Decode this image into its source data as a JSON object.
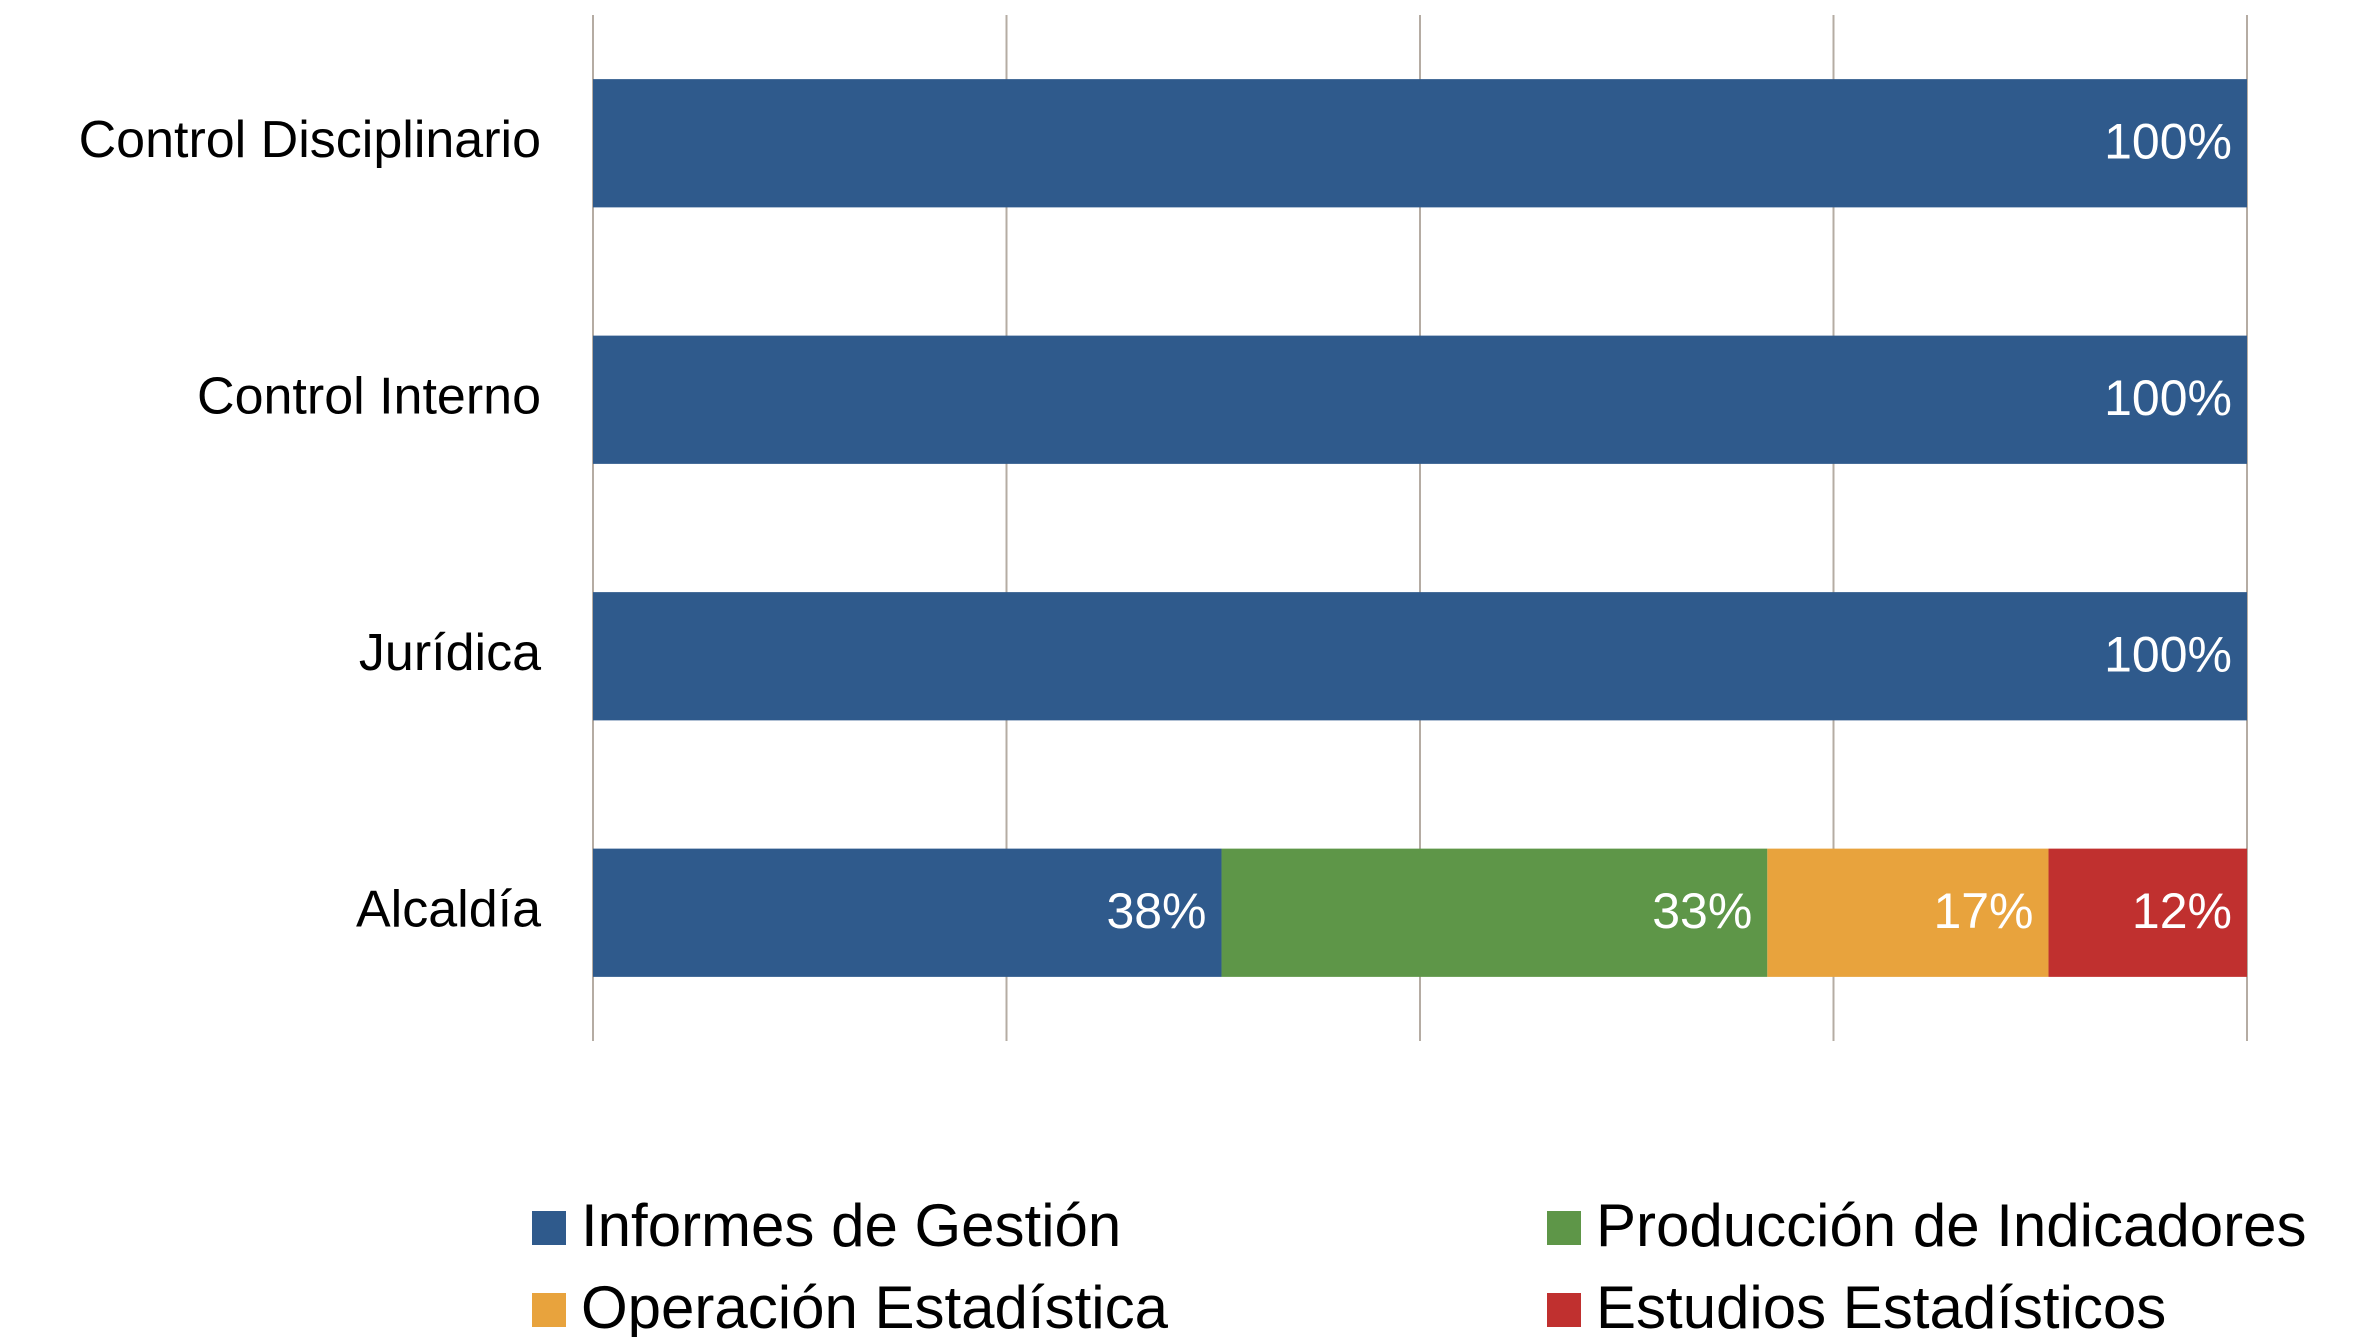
{
  "chart_data": {
    "type": "stacked-barh",
    "categories": [
      "Control Disciplinario",
      "Control Interno",
      "Jurídica",
      "Alcaldía"
    ],
    "series": [
      {
        "name": "Informes de Gestión",
        "color": "#2f5a8c",
        "values": [
          100,
          100,
          100,
          38
        ],
        "value_labels": [
          "100%",
          "100%",
          "100%",
          "38%"
        ]
      },
      {
        "name": "Producción de Indicadores",
        "color": "#5e9648",
        "values": [
          0,
          0,
          0,
          33
        ],
        "value_labels": [
          null,
          null,
          null,
          "33%"
        ]
      },
      {
        "name": "Operación Estadística",
        "color": "#e8a33d",
        "values": [
          0,
          0,
          0,
          17
        ],
        "value_labels": [
          null,
          null,
          null,
          "17%"
        ]
      },
      {
        "name": "Estudios Estadísticos",
        "color": "#c0302f",
        "values": [
          0,
          0,
          0,
          12
        ],
        "value_labels": [
          null,
          null,
          null,
          "12%"
        ]
      }
    ],
    "xlim": [
      0,
      100
    ],
    "xticks": [
      0,
      25,
      50,
      75,
      100
    ],
    "grid": true,
    "legend": "bottom"
  }
}
